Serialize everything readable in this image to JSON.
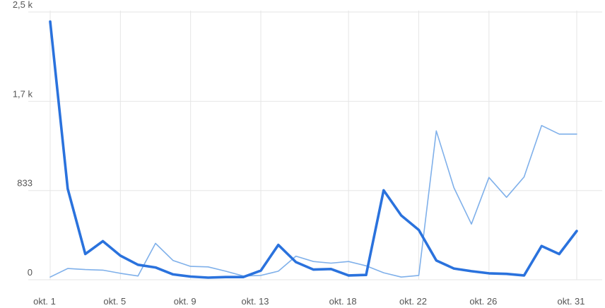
{
  "chart_data": {
    "type": "line",
    "x": [
      1,
      2,
      3,
      4,
      5,
      6,
      7,
      8,
      9,
      10,
      11,
      12,
      13,
      14,
      15,
      16,
      17,
      18,
      19,
      20,
      21,
      22,
      23,
      24,
      25,
      26,
      27,
      28,
      29,
      30,
      31
    ],
    "x_ticks": [
      {
        "x": 1,
        "label": "okt. 1"
      },
      {
        "x": 5,
        "label": "okt. 5"
      },
      {
        "x": 9,
        "label": "okt. 9"
      },
      {
        "x": 13,
        "label": "okt. 13"
      },
      {
        "x": 18,
        "label": "okt. 18"
      },
      {
        "x": 22,
        "label": "okt. 22"
      },
      {
        "x": 26,
        "label": "okt. 26"
      },
      {
        "x": 31,
        "label": "okt. 31"
      }
    ],
    "y_ticks": [
      {
        "value": 0,
        "label": "0"
      },
      {
        "value": 833,
        "label": "833"
      },
      {
        "value": 1666,
        "label": "1,7 k"
      },
      {
        "value": 2500,
        "label": "2,5 k"
      }
    ],
    "ylim": [
      0,
      2500
    ],
    "xlim": [
      1,
      31
    ],
    "grid": true,
    "series": [
      {
        "color": "#7fb0ea",
        "style": "thin",
        "values": [
          25,
          105,
          95,
          90,
          60,
          35,
          340,
          180,
          125,
          120,
          80,
          35,
          40,
          80,
          220,
          170,
          155,
          170,
          130,
          65,
          25,
          40,
          1390,
          860,
          520,
          955,
          770,
          960,
          1440,
          1360,
          1360
        ]
      },
      {
        "color": "#2a72dd",
        "style": "thick",
        "values": [
          2410,
          850,
          240,
          360,
          225,
          140,
          115,
          50,
          30,
          20,
          25,
          25,
          85,
          325,
          165,
          95,
          100,
          40,
          45,
          835,
          600,
          465,
          180,
          105,
          80,
          60,
          55,
          40,
          315,
          240,
          455
        ]
      }
    ]
  }
}
